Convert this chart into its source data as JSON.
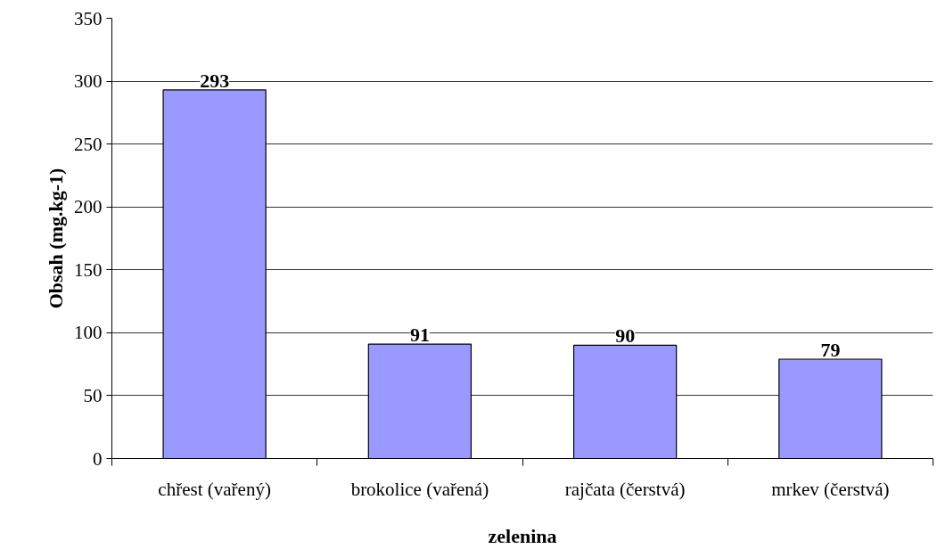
{
  "chart_data": {
    "type": "bar",
    "xlabel": "zelenina",
    "ylabel": "Obsah (mg.kg-1)",
    "categories": [
      "chřest (vařený)",
      "brokolice (vařená)",
      "rajčata (čerstvá)",
      "mrkev (čerstvá)"
    ],
    "values": [
      293,
      91,
      90,
      79
    ],
    "color": "#9999ff",
    "ylim": [
      0,
      350
    ],
    "yticks": [
      0,
      50,
      100,
      150,
      200,
      250,
      300,
      350
    ],
    "grid": "y",
    "data_labels": true
  }
}
